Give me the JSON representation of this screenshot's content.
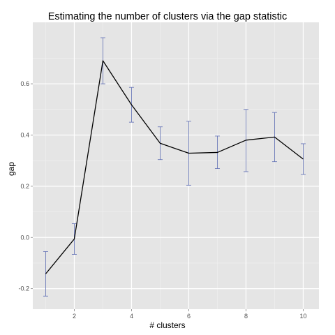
{
  "chart_data": {
    "type": "line",
    "title": "Estimating the number of clusters via the gap statistic",
    "xlabel": "# clusters",
    "ylabel": "gap",
    "x": [
      1,
      2,
      3,
      4,
      5,
      6,
      7,
      8,
      9,
      10
    ],
    "series": [
      {
        "values": [
          -0.142,
          -0.006,
          0.69,
          0.518,
          0.368,
          0.329,
          0.332,
          0.38,
          0.392,
          0.306
        ],
        "lower": [
          -0.229,
          -0.066,
          0.6,
          0.45,
          0.304,
          0.204,
          0.269,
          0.257,
          0.296,
          0.246
        ],
        "upper": [
          -0.055,
          0.054,
          0.78,
          0.586,
          0.432,
          0.454,
          0.396,
          0.5,
          0.488,
          0.366
        ]
      }
    ],
    "xlim": [
      0.55,
      10.55
    ],
    "ylim": [
      -0.28,
      0.84
    ],
    "xticks": [
      2,
      4,
      6,
      8,
      10
    ],
    "yticks": [
      -0.2,
      0.0,
      0.2,
      0.4,
      0.6
    ],
    "xtick_labels": [
      "2",
      "4",
      "6",
      "8",
      "10"
    ],
    "ytick_labels": [
      "-0.2",
      "0.0",
      "0.2",
      "0.4",
      "0.6"
    ],
    "grid": true,
    "colors": {
      "panel_background": "#e5e5e5",
      "major_grid": "#ffffff",
      "minor_grid": "#f2f2f2",
      "line": "#000000",
      "error_bars": "#6a78b8"
    }
  }
}
